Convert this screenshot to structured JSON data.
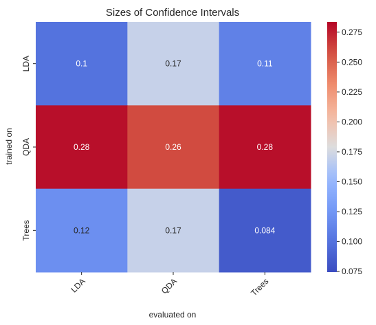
{
  "chart_data": {
    "type": "heatmap",
    "title": "Sizes of Confidence Intervals",
    "xlabel": "evaluated on",
    "ylabel": "trained on",
    "x_categories": [
      "LDA",
      "QDA",
      "Trees"
    ],
    "y_categories": [
      "LDA",
      "QDA",
      "Trees"
    ],
    "values": [
      [
        0.1,
        0.17,
        0.11
      ],
      [
        0.28,
        0.26,
        0.28
      ],
      [
        0.12,
        0.17,
        0.084
      ]
    ],
    "colormap": "coolwarm",
    "colorbar_range": [
      0.0745,
      0.2835
    ],
    "colorbar_ticks": [
      "0.075",
      "0.100",
      "0.125",
      "0.150",
      "0.175",
      "0.200",
      "0.225",
      "0.250",
      "0.275"
    ],
    "grid": false,
    "colors": {
      "low": "#3b4cc0",
      "mid": "#dddddd",
      "high": "#b40426",
      "text_light": "#ffffff",
      "text_dark": "#262626"
    }
  }
}
